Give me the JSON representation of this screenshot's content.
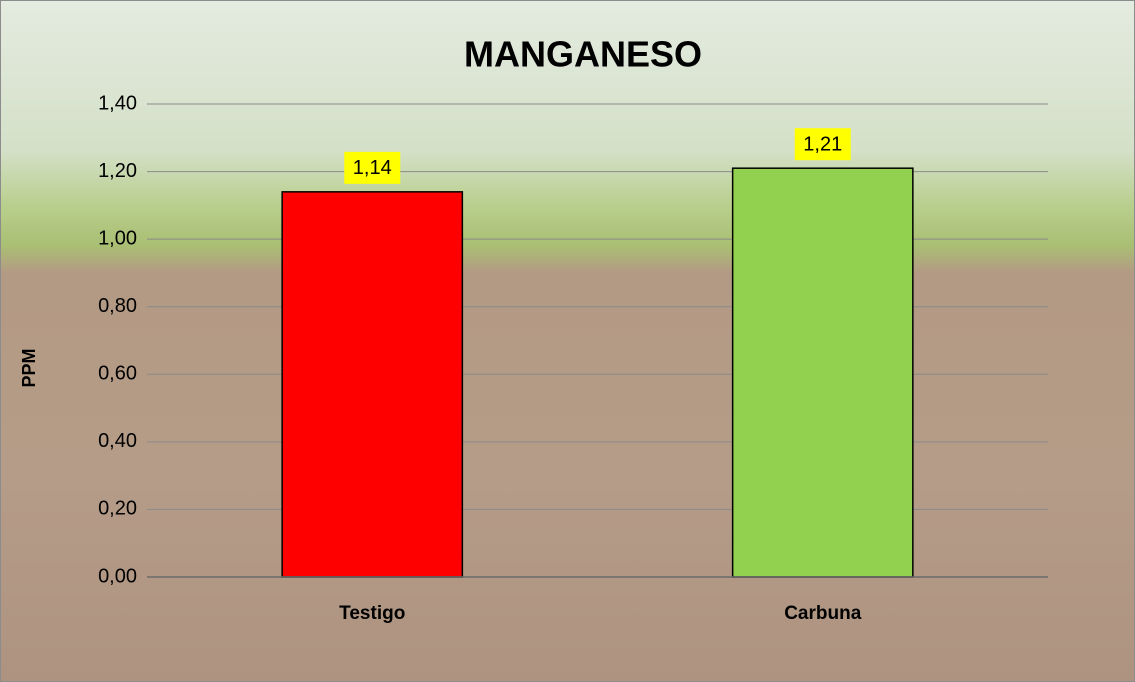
{
  "chart_data": {
    "type": "bar",
    "title": "MANGANESO",
    "y_label": "PPM",
    "categories": [
      "Testigo",
      "Carbuna"
    ],
    "values": [
      1.14,
      1.21
    ],
    "value_labels": [
      "1,14",
      "1,21"
    ],
    "colors": [
      "#ff0000",
      "#92d050"
    ],
    "ylim": [
      0,
      1.4
    ],
    "yticks": [
      {
        "value": 0,
        "label": "0,00"
      },
      {
        "value": 0.2,
        "label": "0,20"
      },
      {
        "value": 0.4,
        "label": "0,40"
      },
      {
        "value": 0.6,
        "label": "0,60"
      },
      {
        "value": 0.8,
        "label": "0,80"
      },
      {
        "value": 1.0,
        "label": "1,00"
      },
      {
        "value": 1.2,
        "label": "1,20"
      },
      {
        "value": 1.4,
        "label": "1,40"
      }
    ],
    "grid": true
  }
}
